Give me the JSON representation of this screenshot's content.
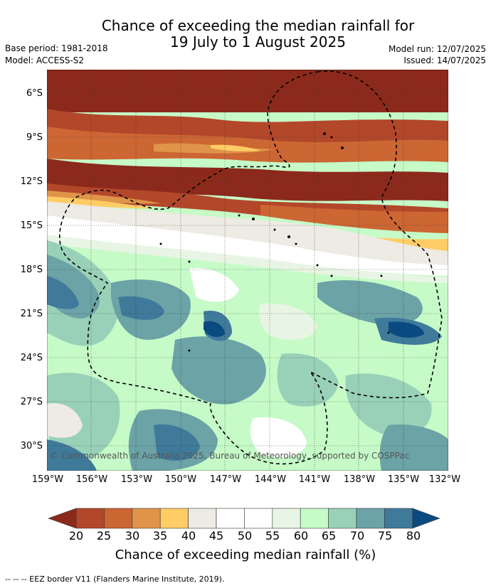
{
  "title_line1": "Chance of exceeding the median rainfall for",
  "title_line2": "19 July to 1 August 2025",
  "base_period": "Base period: 1981-2018",
  "model": "Model: ACCESS-S2",
  "model_run": "Model run: 12/07/2025",
  "issued": "Issued: 14/07/2025",
  "copyright": "© Commonwealth of Australia 2025, Bureau of Meteorology, supported by COSPPac",
  "lat_labels": [
    "6°S",
    "9°S",
    "12°S",
    "15°S",
    "18°S",
    "21°S",
    "24°S",
    "27°S",
    "30°S"
  ],
  "lon_labels": [
    "159°W",
    "156°W",
    "153°W",
    "150°W",
    "147°W",
    "144°W",
    "141°W",
    "138°W",
    "135°W",
    "132°W"
  ],
  "colorbar": {
    "ticks": [
      "20",
      "25",
      "30",
      "35",
      "40",
      "45",
      "50",
      "55",
      "60",
      "65",
      "70",
      "75",
      "80"
    ],
    "colors": [
      "#8b2a1c",
      "#b3472a",
      "#cc6633",
      "#e0944a",
      "#ffcc66",
      "#eeeae4",
      "#ffffff",
      "#ffffff",
      "#e8f5e4",
      "#c6fbc8",
      "#99d1b8",
      "#6ba3a6",
      "#3f7a9a",
      "#0b4a80"
    ],
    "label": "Chance of exceeding median rainfall (%)"
  },
  "legend_line": "--  --  -- EEZ border V11 (Flanders Marine Institute, 2019)."
}
